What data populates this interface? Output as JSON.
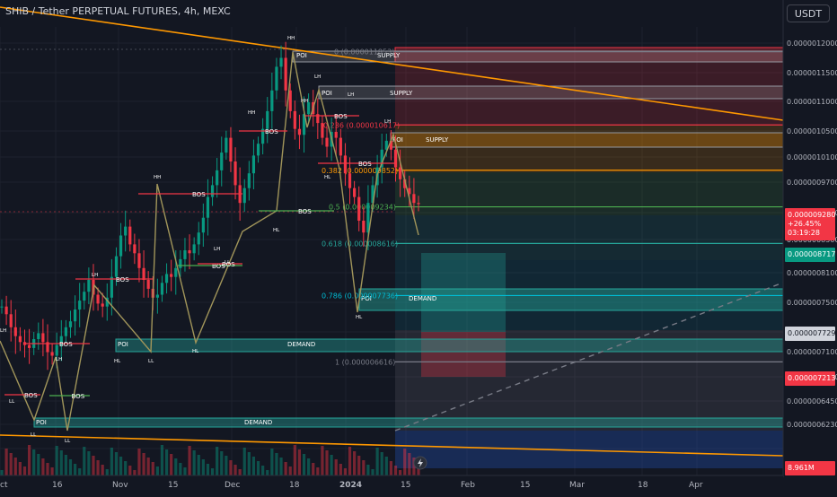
{
  "header": {
    "title": "SHIB / Tether PERPETUAL FUTURES, 4h, MEXC",
    "currency_button": "USDT"
  },
  "chart_data": {
    "type": "candlestick",
    "xlabel": "",
    "ylabel": "",
    "ylim": [
      6.3e-06,
      1.22e-05
    ],
    "x_ticks": [
      "ct",
      "16",
      "Nov",
      "15",
      "Dec",
      "18",
      "2024",
      "15",
      "Feb",
      "15",
      "Mar",
      "18",
      "Apr"
    ],
    "y_ticks": [
      "0.0000012000",
      "0.0000011500",
      "0.0000011000",
      "0.0000010500",
      "0.0000010100",
      "0.0000009700",
      "0.0000008900",
      "0.0000008500",
      "0.0000008100",
      "0.0000007500",
      "0.0000007100",
      "0.0000006700",
      "0.0000006450",
      "0.0000006230"
    ],
    "price_badges": [
      {
        "lines": [
          "0.000009280",
          "+26.45%",
          "03:19:28"
        ],
        "value": 9.28e-06,
        "color": "#f23645"
      },
      {
        "lines": [
          "0.000008717"
        ],
        "value": 8.717e-06,
        "color": "#089981"
      },
      {
        "lines": [
          "0.000007729"
        ],
        "value": 7.729e-06,
        "color": "#d1d4dc"
      },
      {
        "lines": [
          "0.000007213"
        ],
        "value": 7.213e-06,
        "color": "#f23645"
      },
      {
        "lines": [
          "8.961M"
        ],
        "value": null,
        "color": "#f23645"
      }
    ],
    "fib_levels": [
      {
        "label": "0 (0.000011853)",
        "value": 1.1853e-05,
        "color": "#787b86"
      },
      {
        "label": "0.236 (0.000010617)",
        "value": 1.0617e-05,
        "color": "#f23645"
      },
      {
        "label": "0.382 (0.000009852)",
        "value": 9.852e-06,
        "color": "#ff9800"
      },
      {
        "label": "0.5 (0.000009234)",
        "value": 9.234e-06,
        "color": "#4caf50"
      },
      {
        "label": "0.618 (0.000008616)",
        "value": 8.616e-06,
        "color": "#26a69a"
      },
      {
        "label": "0.786 (0.000007736)",
        "value": 7.736e-06,
        "color": "#00bcd4"
      },
      {
        "label": "1 (0.000006616)",
        "value": 6.616e-06,
        "color": "#787b86"
      }
    ],
    "zones": [
      {
        "label": "POI",
        "type": "SUPPLY"
      },
      {
        "label": "POI",
        "type": "SUPPLY"
      },
      {
        "label": "POI",
        "type": "SUPPLY"
      },
      {
        "label": "POI",
        "type": "DEMAND"
      },
      {
        "label": "POI",
        "type": "DEMAND"
      },
      {
        "label": "POI",
        "type": "DEMAND"
      }
    ],
    "structure_labels": [
      "BOS",
      "BOS",
      "BOS",
      "BOS",
      "BOS",
      "BOS",
      "BOS",
      "BOS",
      "BOS",
      "BOS",
      "BOS"
    ],
    "swing_labels": [
      "HH",
      "HH",
      "HH",
      "HH",
      "LH",
      "LH",
      "LH",
      "LH",
      "LH",
      "LH",
      "HL",
      "HL",
      "HL",
      "HL",
      "LL",
      "LL",
      "LL",
      "LL",
      "HL",
      "LL",
      "LH"
    ],
    "series": [
      {
        "values": [
          7.55,
          7.42,
          7.2,
          7.05,
          6.95,
          6.9,
          6.85,
          7.0,
          7.1,
          6.95,
          6.78,
          6.72,
          6.9,
          7.05,
          7.2,
          7.3,
          7.5,
          7.65,
          7.8,
          8.0,
          7.75,
          7.6,
          7.55,
          7.7,
          8.05,
          8.4,
          8.75,
          8.9,
          8.6,
          8.45,
          8.2,
          8.0,
          7.85,
          7.7,
          7.75,
          7.95,
          8.1,
          8.05,
          8.2,
          8.35,
          8.5,
          8.45,
          8.6,
          8.8,
          9.05,
          9.4,
          9.6,
          9.85,
          10.15,
          10.4,
          10.0,
          9.6,
          9.3,
          9.55,
          9.8,
          10.1,
          10.3,
          10.55,
          10.85,
          11.2,
          11.6,
          11.75,
          11.2,
          10.85,
          10.55,
          10.45,
          10.8,
          11.0,
          10.8,
          10.65,
          10.4,
          10.25,
          10.5,
          10.4,
          10.1,
          9.8,
          9.55,
          9.4,
          9.0,
          8.8,
          9.3,
          9.6,
          9.9,
          10.2,
          10.35,
          10.2,
          9.9,
          9.7,
          9.55,
          9.45,
          9.3,
          9.28
        ]
      }
    ]
  }
}
